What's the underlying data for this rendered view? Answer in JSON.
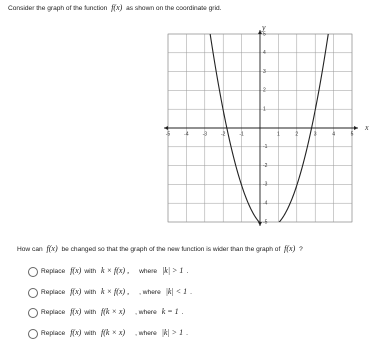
{
  "question": {
    "before": "Consider the graph of the function",
    "func": "f(x)",
    "after": "as shown on the coordinate grid."
  },
  "graph": {
    "x_axis_label": "x",
    "y_axis_label": "y",
    "x_tick_labels": [
      "-5",
      "-4",
      "-3",
      "-2",
      "-1",
      "1",
      "2",
      "3",
      "4",
      "5"
    ],
    "y_tick_labels": [
      "5",
      "4",
      "3",
      "2",
      "1",
      "-1",
      "-2",
      "-3",
      "-4",
      "-5"
    ]
  },
  "prompt": {
    "before": "How can",
    "func": "f(x)",
    "middle": "be changed so that the graph of the new function is wider than the graph of",
    "func2": "f(x)",
    "after": "?"
  },
  "options": [
    {
      "replace": "Replace",
      "func": "f(x)",
      "with": "with",
      "expr": "k × f(x) ,",
      "where": "where",
      "cond": "|k| > 1",
      "end": "."
    },
    {
      "replace": "Replace",
      "func": "f(x)",
      "with": "with",
      "expr": "k × f(x) ,",
      "where": ", where",
      "cond": "|k| < 1",
      "end": "."
    },
    {
      "replace": "Replace",
      "func": "f(x)",
      "with": "with",
      "expr": "f(k × x)",
      "where": ", where",
      "cond": "k = 1",
      "end": "."
    },
    {
      "replace": "Replace",
      "func": "f(x)",
      "with": "with",
      "expr": "f(k × x)",
      "where": ", where",
      "cond": "|k| > 1",
      "end": "."
    }
  ]
}
